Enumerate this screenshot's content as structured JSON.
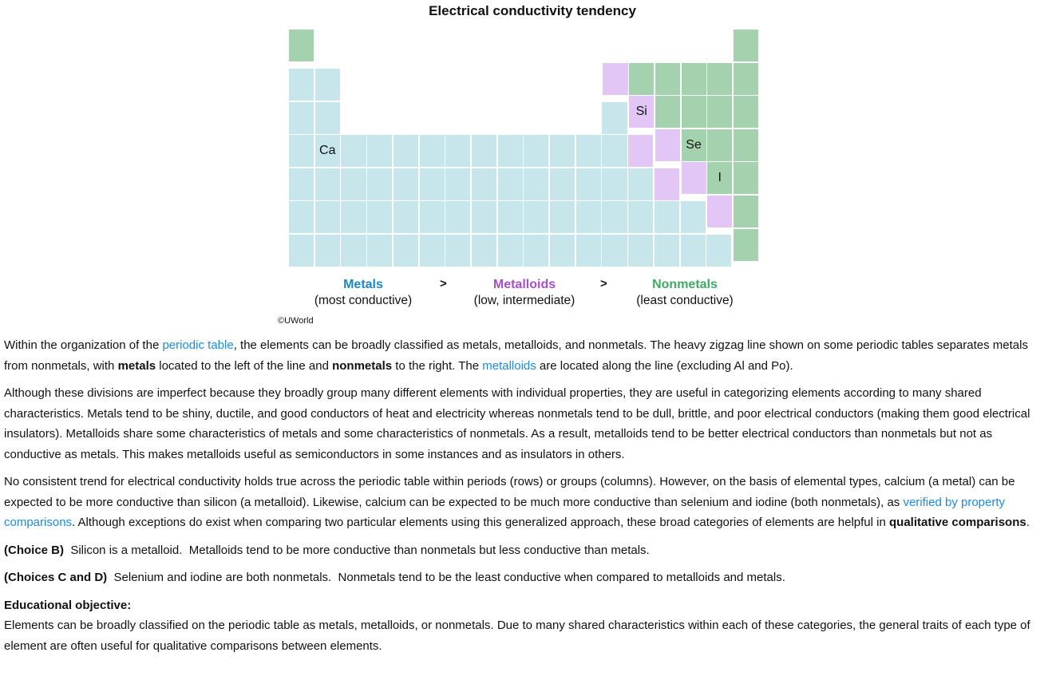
{
  "figure": {
    "title": "Electrical conductivity tendency",
    "labels": {
      "Ca": "Ca",
      "Si": "Si",
      "Se": "Se",
      "I": "I"
    },
    "colors": {
      "metal": "#c6e6ec",
      "metalloid": "#e2c6f5",
      "nonmetal": "#a5d2ae",
      "metal_text": "#1a87c9",
      "metalloid_text": "#a64fc8",
      "nonmetal_text": "#3faa62"
    },
    "legend": [
      {
        "name": "Metals",
        "desc": "(most conductive)"
      },
      {
        "name": "Metalloids",
        "desc": "(low, intermediate)"
      },
      {
        "name": "Nonmetals",
        "desc": "(least conductive)"
      }
    ],
    "separator": ">",
    "copyright": "©UWorld"
  },
  "text": {
    "p1": [
      "Within the organization of the ",
      "periodic table",
      ", the elements can be broadly classified as metals, metalloids, and nonmetals.  The heavy zigzag line shown on some periodic tables separates metals from nonmetals, with ",
      "metals",
      " located to the left of the line and ",
      "nonmetals",
      " to the right.  The ",
      "metalloids",
      " are located along the line (excluding Al and Po)."
    ],
    "p2": "Although these divisions are imperfect because they broadly group many different elements with individual properties, they are useful in categorizing elements according to many shared characteristics.  Metals tend to be shiny, ductile, and good conductors of heat and electricity whereas nonmetals tend to be dull, brittle, and poor electrical conductors (making them good electrical insulators).  Metalloids share some characteristics of metals and some characteristics of nonmetals.  As a result, metalloids tend to be better electrical conductors than nonmetals but not as conductive as metals.  This makes metalloids useful as semiconductors in some instances and as insulators in others.",
    "p3": [
      "No consistent trend for electrical conductivity holds true across the periodic table within periods (rows) or groups (columns).  However, on the basis of elemental types, calcium (a metal) can be expected to be more conductive than silicon (a metalloid).  Likewise, calcium can be expected to be much more conductive than selenium and iodine (both nonmetals), as ",
      "verified by property comparisons",
      ".  Although exceptions do exist when comparing two particular elements using this generalized approach, these broad categories of elements are helpful in ",
      "qualitative comparisons",
      "."
    ],
    "p4": [
      "(Choice B)",
      "  Silicon is a metalloid.  Metalloids tend to be more conductive than nonmetals but less conductive than metals."
    ],
    "p5": [
      "(Choices C and D)",
      "  Selenium and iodine are both nonmetals.  Nonmetals tend to be the least conductive when compared to metalloids and metals."
    ],
    "objective_heading": "Educational objective:",
    "objective": "Elements can be broadly classified on the periodic table as metals, metalloids, or nonmetals.  Due to many shared characteristics within each of these categories, the general traits of each type of element are often useful for qualitative comparisons between elements."
  }
}
